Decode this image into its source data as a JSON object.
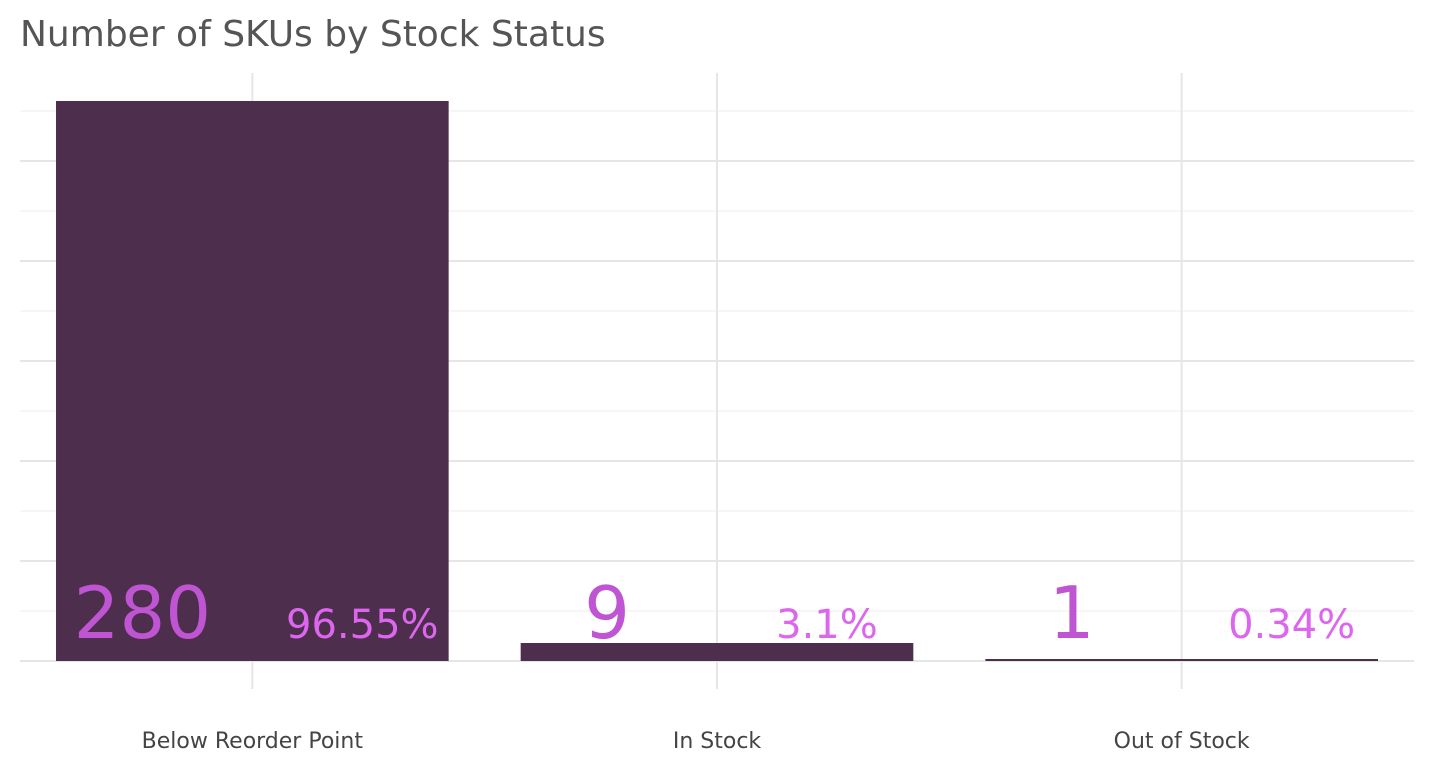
{
  "chart_data": {
    "type": "bar",
    "title": "Number of SKUs by Stock Status",
    "xlabel": "",
    "ylabel": "",
    "categories": [
      "Below Reorder Point",
      "In Stock",
      "Out of Stock"
    ],
    "values": [
      280,
      9,
      1
    ],
    "count_labels": [
      "280",
      "9",
      "1"
    ],
    "percent_labels": [
      "96.55%",
      "3.1%",
      "0.34%"
    ],
    "ylim": [
      0,
      294
    ],
    "grid": true,
    "legend": "none",
    "colors": {
      "bar": "#4e2e4d",
      "count_label": "#bf55d2",
      "percent_label": "#dd66ee",
      "grid_major": "#e6e6e6",
      "grid_minor": "#f6f6f6"
    }
  }
}
